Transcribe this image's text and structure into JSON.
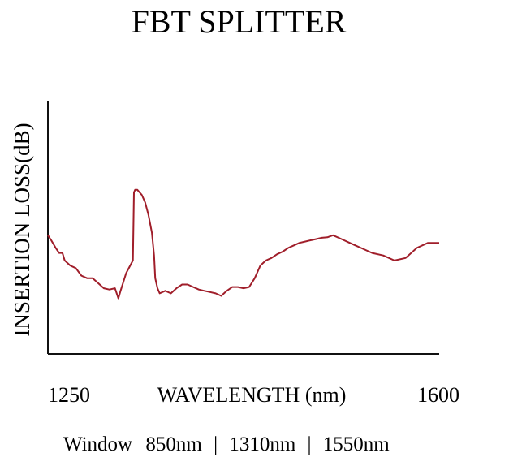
{
  "chart_data": {
    "type": "line",
    "title": "FBT SPLITTER",
    "xlabel": "WAVELENGTH (nm)",
    "ylabel": "INSERTION LOSS(dB)",
    "xlim": [
      1250,
      1600
    ],
    "ylim": [
      0,
      10
    ],
    "x_ticks": [
      "1250",
      "1600"
    ],
    "grid": false,
    "line_color": "#a01e2a",
    "series": [
      {
        "name": "insertion loss",
        "x": [
          1250,
          1253,
          1257,
          1260,
          1263,
          1265,
          1270,
          1275,
          1280,
          1285,
          1290,
          1295,
          1300,
          1305,
          1310,
          1313,
          1315,
          1320,
          1326,
          1327,
          1328,
          1330,
          1334,
          1337,
          1340,
          1343,
          1345,
          1346,
          1347,
          1348,
          1350,
          1355,
          1360,
          1365,
          1370,
          1375,
          1380,
          1385,
          1390,
          1395,
          1400,
          1405,
          1410,
          1415,
          1420,
          1425,
          1430,
          1435,
          1440,
          1445,
          1450,
          1455,
          1460,
          1465,
          1470,
          1475,
          1480,
          1485,
          1490,
          1495,
          1500,
          1505,
          1510,
          1515,
          1520,
          1525,
          1530,
          1540,
          1550,
          1560,
          1570,
          1580,
          1590,
          1600
        ],
        "y": [
          4.7,
          4.5,
          4.2,
          4.0,
          4.0,
          3.7,
          3.5,
          3.4,
          3.1,
          3.0,
          3.0,
          2.8,
          2.6,
          2.55,
          2.6,
          2.2,
          2.5,
          3.2,
          3.7,
          6.4,
          6.5,
          6.5,
          6.3,
          6.0,
          5.5,
          4.8,
          3.9,
          3.0,
          2.8,
          2.6,
          2.4,
          2.5,
          2.4,
          2.6,
          2.75,
          2.75,
          2.65,
          2.55,
          2.5,
          2.45,
          2.4,
          2.3,
          2.5,
          2.65,
          2.65,
          2.6,
          2.65,
          3.0,
          3.5,
          3.7,
          3.8,
          3.95,
          4.05,
          4.2,
          4.3,
          4.4,
          4.45,
          4.5,
          4.55,
          4.6,
          4.62,
          4.7,
          4.6,
          4.5,
          4.4,
          4.3,
          4.2,
          4.0,
          3.9,
          3.7,
          3.8,
          4.2,
          4.4,
          4.4
        ]
      }
    ]
  },
  "footer": {
    "window_label": "Window",
    "windows": [
      "850nm",
      "1310nm",
      "1550nm"
    ],
    "separator": "|"
  }
}
